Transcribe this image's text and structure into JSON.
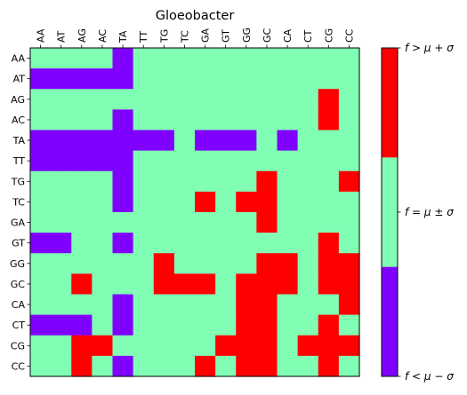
{
  "chart_data": {
    "type": "heatmap",
    "title": "Gloeobacter",
    "x_labels": [
      "AA",
      "AT",
      "AG",
      "AC",
      "TA",
      "TT",
      "TG",
      "TC",
      "GA",
      "GT",
      "GG",
      "GC",
      "CA",
      "CT",
      "CG",
      "CC"
    ],
    "y_labels": [
      "AA",
      "AT",
      "AG",
      "AC",
      "TA",
      "TT",
      "TG",
      "TC",
      "GA",
      "GT",
      "GG",
      "GC",
      "CA",
      "CT",
      "CG",
      "CC"
    ],
    "categories": [
      {
        "value": -1,
        "label": "f < μ − σ",
        "color": "#8000ff"
      },
      {
        "value": 0,
        "label": "f = μ ± σ",
        "color": "#80ffb4"
      },
      {
        "value": 1,
        "label": "f > μ + σ",
        "color": "#ff0000"
      }
    ],
    "colorbar_labels": {
      "top": "f > μ + σ",
      "middle": "f = μ ± σ",
      "bottom": "f < μ − σ"
    },
    "matrix": [
      [
        0,
        0,
        0,
        0,
        -1,
        0,
        0,
        0,
        0,
        0,
        0,
        0,
        0,
        0,
        0,
        0
      ],
      [
        -1,
        -1,
        -1,
        -1,
        -1,
        0,
        0,
        0,
        0,
        0,
        0,
        0,
        0,
        0,
        0,
        0
      ],
      [
        0,
        0,
        0,
        0,
        0,
        0,
        0,
        0,
        0,
        0,
        0,
        0,
        0,
        0,
        1,
        0
      ],
      [
        0,
        0,
        0,
        0,
        -1,
        0,
        0,
        0,
        0,
        0,
        0,
        0,
        0,
        0,
        1,
        0
      ],
      [
        -1,
        -1,
        -1,
        -1,
        -1,
        -1,
        -1,
        0,
        -1,
        -1,
        -1,
        0,
        -1,
        0,
        0,
        0
      ],
      [
        -1,
        -1,
        -1,
        -1,
        -1,
        0,
        0,
        0,
        0,
        0,
        0,
        0,
        0,
        0,
        0,
        0
      ],
      [
        0,
        0,
        0,
        0,
        -1,
        0,
        0,
        0,
        0,
        0,
        0,
        1,
        0,
        0,
        0,
        1
      ],
      [
        0,
        0,
        0,
        0,
        -1,
        0,
        0,
        0,
        1,
        0,
        1,
        1,
        0,
        0,
        0,
        0
      ],
      [
        0,
        0,
        0,
        0,
        0,
        0,
        0,
        0,
        0,
        0,
        0,
        1,
        0,
        0,
        0,
        0
      ],
      [
        -1,
        -1,
        0,
        0,
        -1,
        0,
        0,
        0,
        0,
        0,
        0,
        0,
        0,
        0,
        1,
        0
      ],
      [
        0,
        0,
        0,
        0,
        0,
        0,
        1,
        0,
        0,
        0,
        0,
        1,
        1,
        0,
        1,
        1
      ],
      [
        0,
        0,
        1,
        0,
        0,
        0,
        1,
        1,
        1,
        0,
        1,
        1,
        1,
        0,
        1,
        1
      ],
      [
        0,
        0,
        0,
        0,
        -1,
        0,
        0,
        0,
        0,
        0,
        1,
        1,
        0,
        0,
        0,
        1
      ],
      [
        -1,
        -1,
        -1,
        0,
        -1,
        0,
        0,
        0,
        0,
        0,
        1,
        1,
        0,
        0,
        1,
        0
      ],
      [
        0,
        0,
        1,
        1,
        0,
        0,
        0,
        0,
        0,
        1,
        1,
        1,
        0,
        1,
        1,
        1
      ],
      [
        0,
        0,
        1,
        0,
        -1,
        0,
        0,
        0,
        1,
        0,
        1,
        1,
        0,
        0,
        1,
        0
      ]
    ]
  }
}
